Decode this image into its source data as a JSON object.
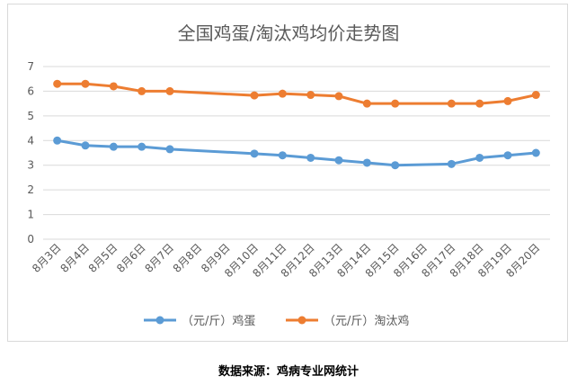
{
  "source_note": "数据来源：鸡病专业网统计",
  "chart_data": {
    "type": "line",
    "title": "全国鸡蛋/淘汰鸡均价走势图",
    "xlabel": "",
    "ylabel": "",
    "categories": [
      "8月3日",
      "8月4日",
      "8月5日",
      "8月6日",
      "8月7日",
      "8月8日",
      "8月9日",
      "8月10日",
      "8月11日",
      "8月12日",
      "8月13日",
      "8月14日",
      "8月15日",
      "8月16日",
      "8月17日",
      "8月18日",
      "8月19日",
      "8月20日"
    ],
    "ylim": [
      0,
      7
    ],
    "yticks": [
      0,
      1,
      2,
      3,
      4,
      5,
      6,
      7
    ],
    "grid": "horizontal",
    "legend_position": "bottom",
    "series": [
      {
        "name": "（元/斤）鸡蛋",
        "color": "#5b9bd5",
        "values": [
          4.0,
          3.8,
          3.75,
          3.75,
          3.65,
          null,
          null,
          3.47,
          3.4,
          3.3,
          3.2,
          3.1,
          3.0,
          null,
          3.05,
          3.3,
          3.4,
          3.5
        ]
      },
      {
        "name": "（元/斤）淘汰鸡",
        "color": "#ed7d31",
        "values": [
          6.3,
          6.3,
          6.2,
          6.0,
          6.0,
          null,
          null,
          5.83,
          5.9,
          5.85,
          5.8,
          5.5,
          5.5,
          null,
          5.5,
          5.5,
          5.6,
          5.85
        ]
      }
    ]
  }
}
